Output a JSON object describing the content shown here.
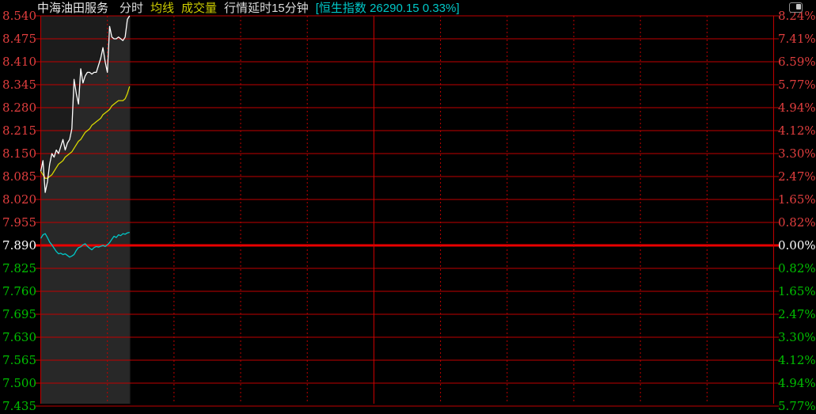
{
  "header": {
    "stock_name": "中海油田服务",
    "mode_label": "分时",
    "ma_label": "均线",
    "volume_label": "成交量",
    "delay_label": "行情延时15分钟",
    "index_ticker": "[恒生指数 26290.15 0.33%]"
  },
  "icons": {
    "top_right": "panel-toggle-icon"
  },
  "colors": {
    "background": "#000000",
    "grid": "#bf0000",
    "grid_strong": "#ea0000",
    "session_divider": "#d00000",
    "band": "#1c1c1c",
    "area_fill": "rgba(255,255,255,0.055)",
    "up_text": "#e03e3e",
    "down_text": "#00bd00",
    "flat_text": "#ffffff",
    "price_line": "#ffffff",
    "avg_line": "#d8d800",
    "index_line": "#00c8c8"
  },
  "axes": {
    "left": [
      {
        "text": "8.540",
        "cls": "up"
      },
      {
        "text": "8.475",
        "cls": "up"
      },
      {
        "text": "8.410",
        "cls": "up"
      },
      {
        "text": "8.345",
        "cls": "up"
      },
      {
        "text": "8.280",
        "cls": "up"
      },
      {
        "text": "8.215",
        "cls": "up"
      },
      {
        "text": "8.150",
        "cls": "up"
      },
      {
        "text": "8.085",
        "cls": "up"
      },
      {
        "text": "8.020",
        "cls": "up"
      },
      {
        "text": "7.955",
        "cls": "up"
      },
      {
        "text": "7.890",
        "cls": "flat"
      },
      {
        "text": "7.825",
        "cls": "down"
      },
      {
        "text": "7.760",
        "cls": "down"
      },
      {
        "text": "7.695",
        "cls": "down"
      },
      {
        "text": "7.630",
        "cls": "down"
      },
      {
        "text": "7.565",
        "cls": "down"
      },
      {
        "text": "7.500",
        "cls": "down"
      },
      {
        "text": "7.435",
        "cls": "down"
      }
    ],
    "right": [
      {
        "text": "8.24%",
        "cls": "up"
      },
      {
        "text": "7.41%",
        "cls": "up"
      },
      {
        "text": "6.59%",
        "cls": "up"
      },
      {
        "text": "5.77%",
        "cls": "up"
      },
      {
        "text": "4.94%",
        "cls": "up"
      },
      {
        "text": "4.12%",
        "cls": "up"
      },
      {
        "text": "3.30%",
        "cls": "up"
      },
      {
        "text": "2.47%",
        "cls": "up"
      },
      {
        "text": "1.65%",
        "cls": "up"
      },
      {
        "text": "0.82%",
        "cls": "up"
      },
      {
        "text": "0.00%",
        "cls": "flat"
      },
      {
        "text": "0.82%",
        "cls": "down"
      },
      {
        "text": "1.65%",
        "cls": "down"
      },
      {
        "text": "2.47%",
        "cls": "down"
      },
      {
        "text": "3.30%",
        "cls": "down"
      },
      {
        "text": "4.12%",
        "cls": "down"
      },
      {
        "text": "4.94%",
        "cls": "down"
      },
      {
        "text": "5.77%",
        "cls": "down"
      }
    ]
  },
  "chart_data": {
    "type": "line",
    "title": "中海油田服务 分时",
    "prev_close": 7.89,
    "day_high": 8.54,
    "y_ticks_price": [
      8.54,
      8.475,
      8.41,
      8.345,
      8.28,
      8.215,
      8.15,
      8.085,
      8.02,
      7.955,
      7.89,
      7.825,
      7.76,
      7.695,
      7.63,
      7.565,
      7.5,
      7.435
    ],
    "y_ticks_pct": [
      8.24,
      7.41,
      6.59,
      5.77,
      4.94,
      4.12,
      3.3,
      2.47,
      1.65,
      0.82,
      0.0,
      -0.82,
      -1.65,
      -2.47,
      -3.3,
      -4.12,
      -4.94,
      -5.77
    ],
    "x_axis": {
      "total_minutes": 330,
      "session_break_minute": 150,
      "gridline_interval_minutes": 30,
      "elapsed_minutes": 40
    },
    "legend_position": "none",
    "grid": true,
    "series": [
      {
        "name": "价格",
        "key": "price",
        "color": "#ffffff",
        "unit": "price",
        "values": [
          8.1,
          8.13,
          8.04,
          8.07,
          8.12,
          8.15,
          8.14,
          8.16,
          8.15,
          8.17,
          8.19,
          8.16,
          8.18,
          8.19,
          8.22,
          8.36,
          8.32,
          8.29,
          8.39,
          8.35,
          8.37,
          8.38,
          8.38,
          8.375,
          8.38,
          8.38,
          8.4,
          8.42,
          8.45,
          8.41,
          8.38,
          8.51,
          8.48,
          8.475,
          8.475,
          8.48,
          8.475,
          8.47,
          8.48,
          8.53,
          8.54
        ]
      },
      {
        "name": "均价",
        "key": "avg",
        "color": "#d8d800",
        "unit": "price",
        "values": [
          8.1,
          8.09,
          8.08,
          8.08,
          8.085,
          8.09,
          8.1,
          8.11,
          8.12,
          8.125,
          8.13,
          8.14,
          8.145,
          8.15,
          8.155,
          8.165,
          8.175,
          8.185,
          8.19,
          8.2,
          8.21,
          8.215,
          8.22,
          8.23,
          8.235,
          8.24,
          8.245,
          8.25,
          8.26,
          8.265,
          8.27,
          8.275,
          8.285,
          8.29,
          8.295,
          8.3,
          8.3,
          8.3,
          8.305,
          8.32,
          8.34
        ]
      },
      {
        "name": "恒生指数",
        "key": "hsi",
        "color": "#00c8c8",
        "unit": "pct_change",
        "values": [
          0.25,
          0.38,
          0.42,
          0.28,
          0.12,
          0.02,
          -0.1,
          -0.22,
          -0.3,
          -0.28,
          -0.33,
          -0.3,
          -0.36,
          -0.42,
          -0.38,
          -0.33,
          -0.18,
          -0.08,
          -0.05,
          0.02,
          0.06,
          -0.03,
          -0.1,
          -0.16,
          -0.08,
          -0.04,
          -0.06,
          -0.03,
          0.0,
          -0.04,
          0.02,
          0.1,
          0.22,
          0.33,
          0.28,
          0.38,
          0.35,
          0.42,
          0.4,
          0.45,
          0.47
        ]
      }
    ]
  }
}
